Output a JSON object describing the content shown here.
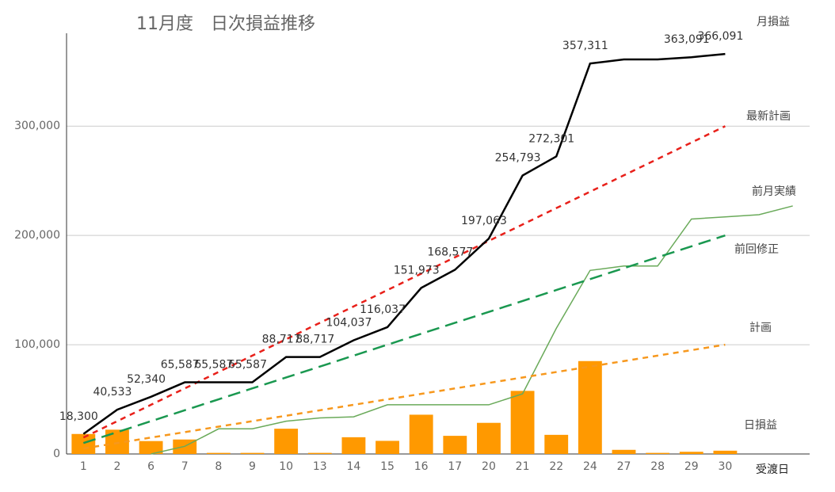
{
  "chart_data": {
    "type": "combo",
    "title": "11月度　日次損益推移",
    "x_label": "受渡日",
    "categories": [
      "1",
      "2",
      "6",
      "7",
      "8",
      "9",
      "10",
      "13",
      "14",
      "15",
      "16",
      "17",
      "20",
      "21",
      "22",
      "24",
      "27",
      "28",
      "29",
      "30",
      null,
      null
    ],
    "ylim": [
      0,
      385000
    ],
    "yticks": [
      0,
      {
        "value": 100000,
        "label": "100,000"
      },
      {
        "value": 200000,
        "label": "200,000"
      },
      {
        "value": 300000,
        "label": "300,000"
      }
    ],
    "grid": true,
    "legend": "end-labels",
    "series": [
      {
        "name": "日損益",
        "type": "bar",
        "color": "#ff9900",
        "values": [
          18300,
          22233,
          11807,
          13247,
          1000,
          1000,
          23130,
          1000,
          15320,
          12000,
          35936,
          16604,
          28486,
          57730,
          17508,
          85010,
          3780,
          1000,
          2000,
          3000,
          null,
          null
        ]
      },
      {
        "name": "前月実績",
        "type": "line",
        "color": "#6aaa5a",
        "width": 1.5,
        "values": [
          null,
          null,
          0,
          7000,
          23000,
          23000,
          30000,
          33000,
          34000,
          45000,
          45000,
          45000,
          45000,
          55000,
          115000,
          168000,
          172000,
          172000,
          215000,
          217000,
          219000,
          227000
        ]
      },
      {
        "name": "計画",
        "type": "line",
        "style": "dashed",
        "color": "#f7981d",
        "width": 2.5,
        "values": [
          5000,
          10000,
          15000,
          20000,
          25000,
          30000,
          35000,
          40000,
          45000,
          50000,
          55000,
          60000,
          65000,
          70000,
          75000,
          80000,
          85000,
          90000,
          95000,
          100000,
          null,
          null
        ]
      },
      {
        "name": "前回修正",
        "type": "line",
        "style": "long-dashed",
        "color": "#1a9850",
        "width": 2.5,
        "values": [
          10000,
          20000,
          30000,
          40000,
          50000,
          60000,
          70000,
          80000,
          90000,
          100000,
          110000,
          120000,
          130000,
          140000,
          150000,
          160000,
          170000,
          180000,
          190000,
          200000,
          null,
          null
        ]
      },
      {
        "name": "最新計画",
        "type": "line",
        "style": "dashed",
        "color": "#e8201a",
        "width": 2.5,
        "values": [
          15000,
          30000,
          45000,
          60000,
          75000,
          90000,
          105000,
          120000,
          135000,
          150000,
          165000,
          180000,
          195000,
          210000,
          225000,
          240000,
          255000,
          270000,
          285000,
          300000,
          null,
          null
        ]
      },
      {
        "name": "月損益",
        "type": "line",
        "color": "#000000",
        "width": 2.5,
        "values": [
          18300,
          40533,
          52340,
          65587,
          65587,
          65587,
          88717,
          88717,
          104037,
          116037,
          151973,
          168577,
          197063,
          254793,
          272301,
          357311,
          361091,
          361091,
          363091,
          366091,
          null,
          null
        ],
        "value_labels": [
          "18,300",
          "40,533",
          "52,340",
          "65,587",
          "65,587",
          "65,587",
          "88,717",
          "88,717",
          "104,037",
          "116,037",
          "151,973",
          "168,577",
          "197,063",
          "254,793",
          "272,301",
          "357,311",
          null,
          null,
          "363,091",
          "366,091",
          null,
          null
        ]
      }
    ]
  }
}
